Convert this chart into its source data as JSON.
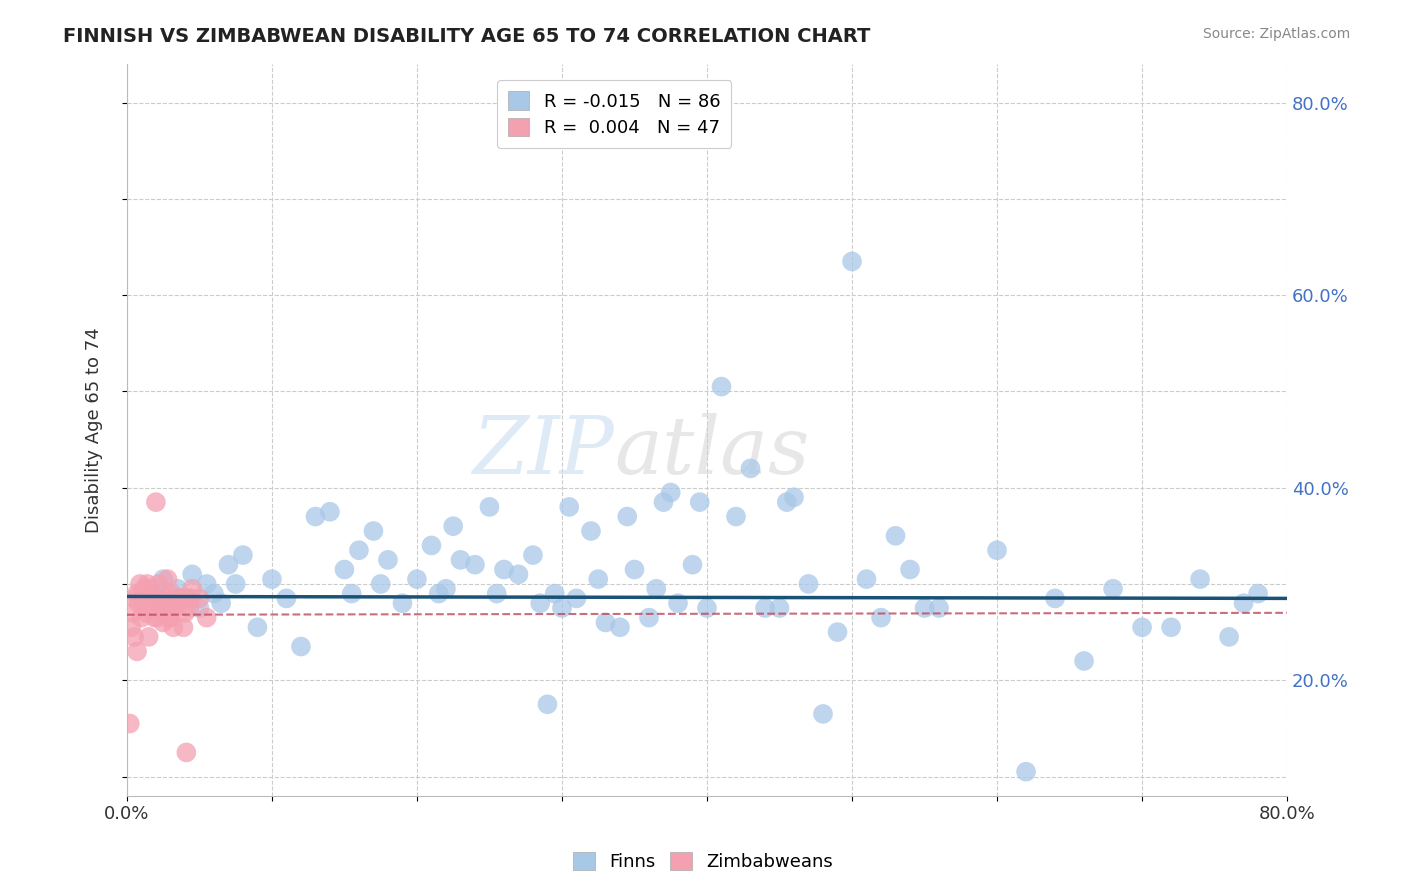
{
  "title": "FINNISH VS ZIMBABWEAN DISABILITY AGE 65 TO 74 CORRELATION CHART",
  "source": "Source: ZipAtlas.com",
  "ylabel": "Disability Age 65 to 74",
  "xlim": [
    0.0,
    0.8
  ],
  "ylim": [
    0.08,
    0.84
  ],
  "xticks": [
    0.0,
    0.1,
    0.2,
    0.3,
    0.4,
    0.5,
    0.6,
    0.7,
    0.8
  ],
  "yticks": [
    0.1,
    0.2,
    0.3,
    0.4,
    0.5,
    0.6,
    0.7,
    0.8
  ],
  "legend_finn": "R = -0.015   N = 86",
  "legend_zimb": "R =  0.004   N = 47",
  "finn_color": "#a8c8e8",
  "zimb_color": "#f4a0b0",
  "finn_line_color": "#1a5276",
  "zimb_line_color": "#c0485a",
  "watermark_text": "ZIPAtlas",
  "background_color": "#ffffff",
  "grid_color": "#cccccc",
  "finn_scatter_x": [
    0.02,
    0.025,
    0.03,
    0.035,
    0.04,
    0.045,
    0.05,
    0.055,
    0.06,
    0.065,
    0.07,
    0.075,
    0.08,
    0.09,
    0.1,
    0.11,
    0.12,
    0.13,
    0.14,
    0.15,
    0.155,
    0.16,
    0.17,
    0.175,
    0.18,
    0.19,
    0.2,
    0.21,
    0.215,
    0.22,
    0.225,
    0.23,
    0.24,
    0.25,
    0.255,
    0.26,
    0.27,
    0.28,
    0.285,
    0.29,
    0.295,
    0.3,
    0.305,
    0.31,
    0.32,
    0.325,
    0.33,
    0.34,
    0.345,
    0.35,
    0.36,
    0.365,
    0.37,
    0.375,
    0.38,
    0.39,
    0.395,
    0.4,
    0.41,
    0.42,
    0.43,
    0.44,
    0.45,
    0.455,
    0.46,
    0.47,
    0.48,
    0.49,
    0.5,
    0.51,
    0.52,
    0.53,
    0.54,
    0.55,
    0.56,
    0.6,
    0.62,
    0.64,
    0.66,
    0.68,
    0.7,
    0.72,
    0.74,
    0.76,
    0.77,
    0.78
  ],
  "finn_scatter_y": [
    0.29,
    0.305,
    0.28,
    0.295,
    0.285,
    0.31,
    0.275,
    0.3,
    0.29,
    0.28,
    0.32,
    0.3,
    0.33,
    0.255,
    0.305,
    0.285,
    0.235,
    0.37,
    0.375,
    0.315,
    0.29,
    0.335,
    0.355,
    0.3,
    0.325,
    0.28,
    0.305,
    0.34,
    0.29,
    0.295,
    0.36,
    0.325,
    0.32,
    0.38,
    0.29,
    0.315,
    0.31,
    0.33,
    0.28,
    0.175,
    0.29,
    0.275,
    0.38,
    0.285,
    0.355,
    0.305,
    0.26,
    0.255,
    0.37,
    0.315,
    0.265,
    0.295,
    0.385,
    0.395,
    0.28,
    0.32,
    0.385,
    0.275,
    0.505,
    0.37,
    0.42,
    0.275,
    0.275,
    0.385,
    0.39,
    0.3,
    0.165,
    0.25,
    0.635,
    0.305,
    0.265,
    0.35,
    0.315,
    0.275,
    0.275,
    0.335,
    0.105,
    0.285,
    0.22,
    0.295,
    0.255,
    0.255,
    0.305,
    0.245,
    0.28,
    0.29
  ],
  "zimb_scatter_x": [
    0.002,
    0.003,
    0.004,
    0.005,
    0.006,
    0.007,
    0.007,
    0.008,
    0.009,
    0.01,
    0.011,
    0.012,
    0.013,
    0.014,
    0.015,
    0.016,
    0.017,
    0.018,
    0.019,
    0.02,
    0.021,
    0.022,
    0.023,
    0.024,
    0.025,
    0.026,
    0.027,
    0.028,
    0.029,
    0.03,
    0.031,
    0.032,
    0.033,
    0.034,
    0.035,
    0.036,
    0.037,
    0.038,
    0.039,
    0.04,
    0.041,
    0.042,
    0.043,
    0.044,
    0.045,
    0.05,
    0.055
  ],
  "zimb_scatter_y": [
    0.155,
    0.255,
    0.27,
    0.245,
    0.285,
    0.29,
    0.23,
    0.28,
    0.3,
    0.265,
    0.285,
    0.295,
    0.27,
    0.3,
    0.245,
    0.295,
    0.285,
    0.275,
    0.265,
    0.385,
    0.265,
    0.3,
    0.275,
    0.275,
    0.26,
    0.285,
    0.285,
    0.305,
    0.265,
    0.265,
    0.29,
    0.255,
    0.275,
    0.285,
    0.28,
    0.285,
    0.285,
    0.285,
    0.255,
    0.27,
    0.125,
    0.285,
    0.275,
    0.285,
    0.295,
    0.285,
    0.265
  ],
  "finn_trend_y": [
    0.287,
    0.285
  ],
  "zimb_trend_y": [
    0.268,
    0.27
  ]
}
